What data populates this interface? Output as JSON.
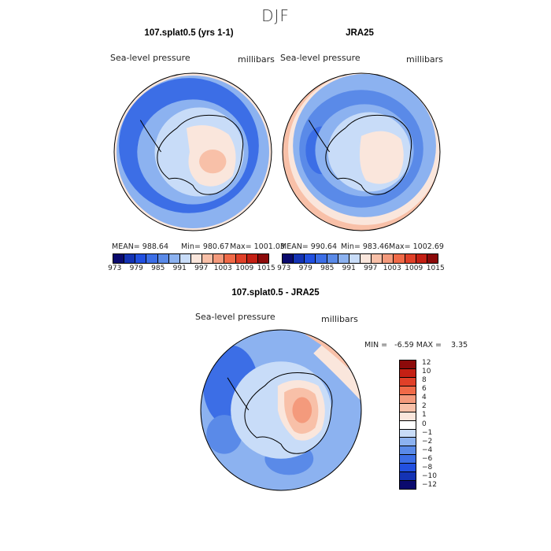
{
  "season": "DJF",
  "panels": {
    "left": {
      "title": "107.splat0.5 (yrs 1-1)",
      "variable": "Sea-level pressure",
      "units": "millibars",
      "stats": {
        "mean": "MEAN= 988.64",
        "min": "Min= 980.67",
        "max": "Max= 1001.03"
      }
    },
    "right": {
      "title": "JRA25",
      "variable": "Sea-level pressure",
      "units": "millibars",
      "stats": {
        "mean": "MEAN= 990.64",
        "min": "Min= 983.46",
        "max": "Max= 1002.69"
      }
    },
    "diff": {
      "title": "107.splat0.5 - JRA25",
      "variable": "Sea-level pressure",
      "units": "millibars",
      "minmax": "MIN =   -6.59 MAX =    3.35"
    }
  },
  "colorbar_top": {
    "colors": [
      "#0a0a6e",
      "#1433b4",
      "#2250e0",
      "#3c6ee6",
      "#5a8ae8",
      "#8cb2f0",
      "#c8dcf8",
      "#fae6dc",
      "#f8c0a8",
      "#f49a7c",
      "#f06a48",
      "#e04028",
      "#c42014",
      "#8c0a0a"
    ],
    "ticks": [
      "973",
      "979",
      "985",
      "991",
      "997",
      "1003",
      "1009",
      "1015"
    ]
  },
  "colorbar_diff": {
    "colors": [
      "#8c0a0a",
      "#c42014",
      "#e04028",
      "#f06a48",
      "#f49a7c",
      "#f8c0a8",
      "#fae6dc",
      "#ffffff",
      "#c8dcf8",
      "#8cb2f0",
      "#5a8ae8",
      "#3c6ee6",
      "#2250e0",
      "#1433b4",
      "#0a0a6e"
    ],
    "ticks": [
      "12",
      "10",
      "8",
      "6",
      "4",
      "2",
      "1",
      "0",
      "−1",
      "−2",
      "−4",
      "−6",
      "−8",
      "−10",
      "−12"
    ]
  },
  "chart_data": [
    {
      "type": "heatmap",
      "title": "107.splat0.5 (yrs 1-1)",
      "subtitle": "Sea-level pressure",
      "units": "millibars",
      "projection": "south-polar-stereographic",
      "season": "DJF",
      "mean": 988.64,
      "min": 980.67,
      "max": 1001.03,
      "contour_levels": [
        973,
        976,
        979,
        982,
        985,
        988,
        991,
        994,
        997,
        1000,
        1003,
        1006,
        1009,
        1012,
        1015
      ]
    },
    {
      "type": "heatmap",
      "title": "JRA25",
      "subtitle": "Sea-level pressure",
      "units": "millibars",
      "projection": "south-polar-stereographic",
      "season": "DJF",
      "mean": 990.64,
      "min": 983.46,
      "max": 1002.69,
      "contour_levels": [
        973,
        976,
        979,
        982,
        985,
        988,
        991,
        994,
        997,
        1000,
        1003,
        1006,
        1009,
        1012,
        1015
      ]
    },
    {
      "type": "heatmap",
      "title": "107.splat0.5 - JRA25",
      "subtitle": "Sea-level pressure",
      "units": "millibars",
      "projection": "south-polar-stereographic",
      "season": "DJF",
      "min": -6.59,
      "max": 3.35,
      "contour_levels": [
        -12,
        -10,
        -8,
        -6,
        -4,
        -2,
        -1,
        0,
        1,
        2,
        4,
        6,
        8,
        10,
        12
      ]
    }
  ]
}
